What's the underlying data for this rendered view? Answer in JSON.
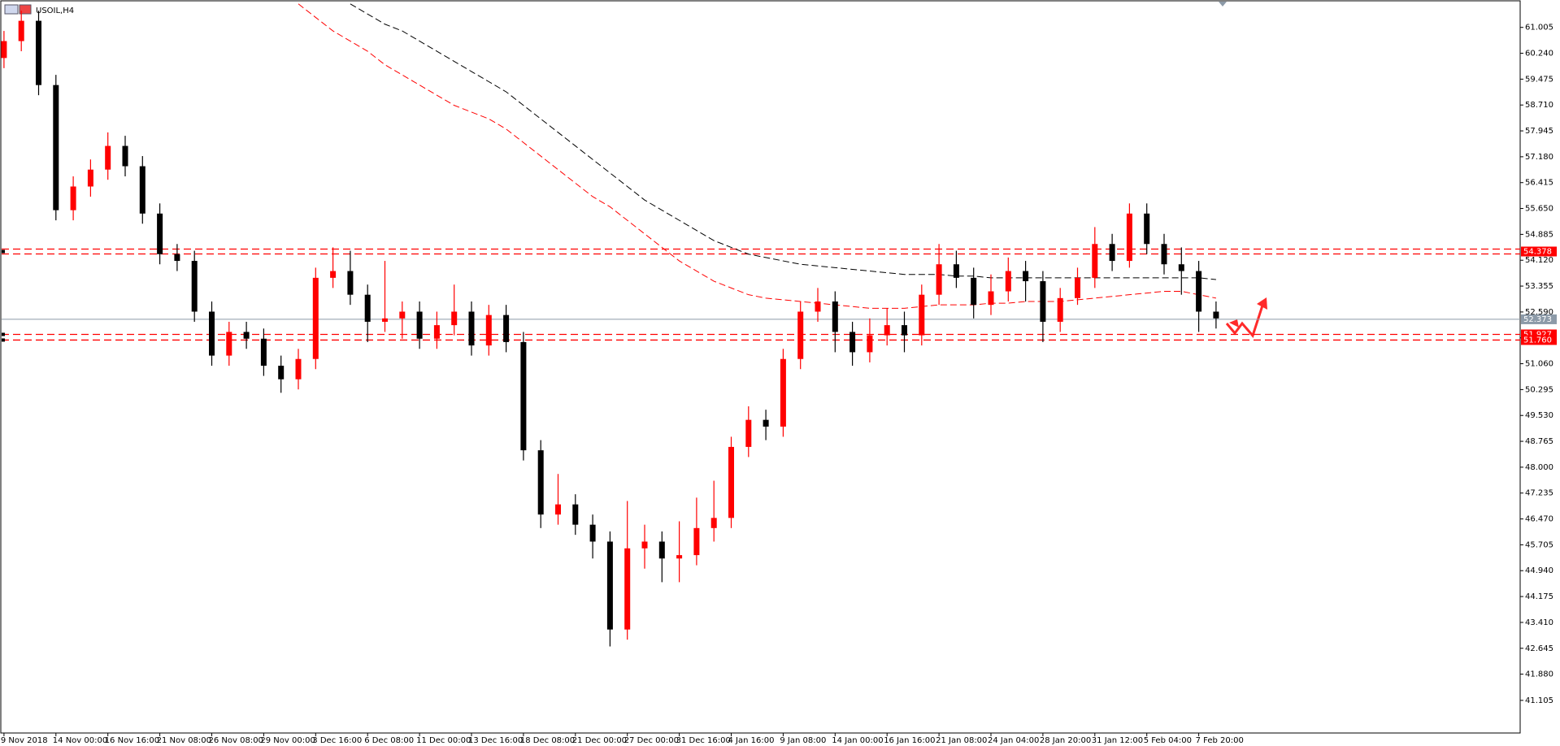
{
  "chart_data": {
    "type": "candlestick",
    "title": "USOIL,H4",
    "categories": [
      "9 Nov 2018",
      null,
      null,
      "14 Nov 00:00",
      null,
      null,
      "16 Nov 16:00",
      null,
      null,
      "21 Nov 08:00",
      null,
      null,
      "26 Nov 08:00",
      null,
      null,
      "29 Nov 00:00",
      null,
      null,
      "3 Dec 16:00",
      null,
      null,
      "6 Dec 08:00",
      null,
      null,
      "11 Dec 00:00",
      null,
      null,
      "13 Dec 16:00",
      null,
      null,
      "18 Dec 08:00",
      null,
      null,
      "21 Dec 00:00",
      null,
      null,
      "27 Dec 00:00",
      null,
      null,
      "31 Dec 16:00",
      null,
      null,
      "4 Jan 16:00",
      null,
      null,
      "9 Jan 08:00",
      null,
      null,
      "14 Jan 00:00",
      null,
      null,
      "16 Jan 16:00",
      null,
      null,
      "21 Jan 08:00",
      null,
      null,
      "24 Jan 04:00",
      null,
      null,
      "28 Jan 20:00",
      null,
      null,
      "31 Jan 12:00",
      null,
      null,
      "5 Feb 04:00",
      null,
      null,
      "7 Feb 20:00",
      null
    ],
    "open": [
      60.1,
      60.6,
      61.2,
      59.3,
      55.6,
      56.3,
      56.8,
      57.5,
      56.9,
      55.5,
      54.3,
      54.1,
      52.6,
      51.3,
      52.0,
      51.8,
      51.0,
      50.6,
      51.2,
      53.6,
      53.8,
      53.1,
      52.3,
      52.4,
      52.6,
      51.8,
      52.2,
      52.6,
      51.6,
      52.5,
      51.7,
      48.5,
      46.6,
      46.9,
      46.3,
      45.8,
      43.2,
      45.6,
      45.8,
      45.3,
      45.4,
      46.2,
      46.5,
      48.6,
      49.4,
      49.2,
      51.2,
      52.6,
      52.9,
      52.0,
      51.4,
      51.9,
      52.2,
      51.9,
      53.1,
      54.0,
      53.6,
      52.8,
      53.2,
      53.8,
      53.5,
      52.3,
      53.0,
      53.6,
      54.6,
      54.1,
      55.5,
      54.6,
      54.0,
      53.8,
      52.6
    ],
    "high": [
      60.9,
      61.5,
      61.5,
      59.6,
      56.6,
      57.1,
      57.9,
      57.8,
      57.2,
      55.8,
      54.6,
      54.4,
      52.9,
      52.3,
      52.3,
      52.1,
      51.3,
      51.5,
      53.9,
      54.5,
      54.4,
      53.4,
      54.1,
      52.9,
      52.9,
      52.6,
      53.4,
      52.9,
      52.8,
      52.8,
      52.0,
      48.8,
      47.8,
      47.2,
      46.6,
      46.1,
      47.0,
      46.3,
      46.1,
      46.4,
      47.1,
      47.6,
      48.9,
      49.8,
      49.7,
      51.5,
      52.9,
      53.3,
      53.2,
      52.3,
      52.4,
      52.7,
      52.6,
      53.4,
      54.6,
      54.4,
      53.9,
      53.7,
      54.2,
      54.1,
      53.8,
      53.3,
      53.9,
      55.1,
      54.9,
      55.8,
      55.8,
      54.9,
      54.5,
      54.1,
      52.9
    ],
    "low": [
      59.8,
      60.3,
      59.0,
      55.3,
      55.3,
      56.0,
      56.5,
      56.6,
      55.2,
      54.0,
      53.8,
      52.3,
      51.0,
      51.0,
      51.5,
      50.7,
      50.2,
      50.3,
      50.9,
      53.3,
      52.8,
      51.7,
      52.0,
      51.8,
      51.5,
      51.5,
      51.9,
      51.3,
      51.3,
      51.4,
      48.2,
      46.2,
      46.3,
      46.0,
      45.3,
      42.7,
      42.9,
      45.0,
      44.6,
      44.6,
      45.1,
      45.8,
      46.2,
      48.3,
      48.8,
      48.9,
      50.9,
      52.3,
      51.4,
      51.0,
      51.1,
      51.6,
      51.4,
      51.6,
      52.8,
      53.3,
      52.4,
      52.5,
      52.9,
      52.9,
      51.7,
      52.0,
      52.8,
      53.3,
      53.8,
      53.9,
      54.3,
      53.7,
      53.1,
      52.0,
      52.1
    ],
    "close": [
      60.6,
      61.2,
      59.3,
      55.6,
      56.3,
      56.8,
      57.5,
      56.9,
      55.5,
      54.3,
      54.1,
      52.6,
      51.3,
      52.0,
      51.8,
      51.0,
      50.6,
      51.2,
      53.6,
      53.8,
      53.1,
      52.3,
      52.4,
      52.6,
      51.8,
      52.2,
      52.6,
      51.6,
      52.5,
      51.7,
      48.5,
      46.6,
      46.9,
      46.3,
      45.8,
      43.2,
      45.6,
      45.8,
      45.3,
      45.4,
      46.2,
      46.5,
      48.6,
      49.4,
      49.2,
      51.2,
      52.6,
      52.9,
      52.0,
      51.4,
      51.9,
      52.2,
      51.9,
      53.1,
      54.0,
      53.6,
      52.8,
      53.2,
      53.8,
      53.5,
      52.3,
      53.0,
      53.6,
      54.6,
      54.1,
      55.5,
      54.6,
      54.0,
      53.8,
      52.6,
      52.4
    ],
    "up_color": "#ff0000",
    "down_color": "#000000",
    "series": [
      {
        "color": "#000000",
        "values": [
          null,
          null,
          null,
          null,
          null,
          null,
          null,
          null,
          null,
          null,
          null,
          null,
          null,
          null,
          null,
          null,
          null,
          null,
          null,
          null,
          61.7,
          61.4,
          61.1,
          60.9,
          60.6,
          60.3,
          60.0,
          59.7,
          59.4,
          59.1,
          58.7,
          58.3,
          57.9,
          57.5,
          57.1,
          56.7,
          56.3,
          55.9,
          55.6,
          55.3,
          55.0,
          54.7,
          54.5,
          54.3,
          54.2,
          54.1,
          54.0,
          53.95,
          53.9,
          53.85,
          53.8,
          53.75,
          53.7,
          53.7,
          53.7,
          53.65,
          53.65,
          53.6,
          53.6,
          53.6,
          53.6,
          53.6,
          53.6,
          53.6,
          53.6,
          53.6,
          53.6,
          53.6,
          53.6,
          53.6,
          53.55
        ]
      },
      {
        "color": "#ff0000",
        "values": [
          null,
          null,
          null,
          null,
          null,
          null,
          null,
          null,
          null,
          null,
          null,
          null,
          null,
          null,
          null,
          null,
          null,
          61.7,
          61.3,
          60.9,
          60.6,
          60.3,
          59.9,
          59.6,
          59.3,
          59.0,
          58.7,
          58.5,
          58.3,
          58.0,
          57.6,
          57.2,
          56.8,
          56.4,
          56.0,
          55.7,
          55.3,
          54.9,
          54.5,
          54.1,
          53.8,
          53.5,
          53.3,
          53.1,
          53.0,
          52.95,
          52.9,
          52.85,
          52.8,
          52.75,
          52.7,
          52.7,
          52.7,
          52.75,
          52.8,
          52.8,
          52.8,
          52.85,
          52.85,
          52.9,
          52.9,
          52.9,
          52.95,
          53.0,
          53.05,
          53.1,
          53.15,
          53.2,
          53.2,
          53.1,
          53.0
        ]
      }
    ],
    "levels": [
      {
        "value": 54.378,
        "color": "#ff0000"
      },
      {
        "value": 51.927,
        "color": "#ff0000"
      },
      {
        "value": 51.76,
        "label": "51.760",
        "color": "#ff0000"
      }
    ],
    "current_price": 52.373,
    "current_color": "#8c9aa8",
    "ylim": [
      40.14,
      61.767
    ],
    "yticks": [
      61.005,
      {
        "value": 60.24,
        "label": "60.240"
      },
      59.475,
      {
        "value": 58.71,
        "label": "58.710"
      },
      57.945,
      {
        "value": 57.18,
        "label": "57.180"
      },
      56.415,
      {
        "value": 55.65,
        "label": "55.650"
      },
      54.885,
      {
        "value": 54.12,
        "label": "54.120"
      },
      53.355,
      {
        "value": 52.59,
        "label": "52.590"
      },
      51.825,
      {
        "value": 51.06,
        "label": "51.060"
      },
      50.295,
      {
        "value": 49.53,
        "label": "49.530"
      },
      48.765,
      {
        "value": 48,
        "label": "48.000"
      },
      47.235,
      {
        "value": 46.47,
        "label": "46.470"
      },
      45.705,
      {
        "value": 44.94,
        "label": "44.940"
      },
      44.175,
      {
        "value": 43.41,
        "label": "43.410"
      },
      42.645,
      {
        "value": 41.88,
        "label": "41.880"
      },
      41.105
    ]
  }
}
